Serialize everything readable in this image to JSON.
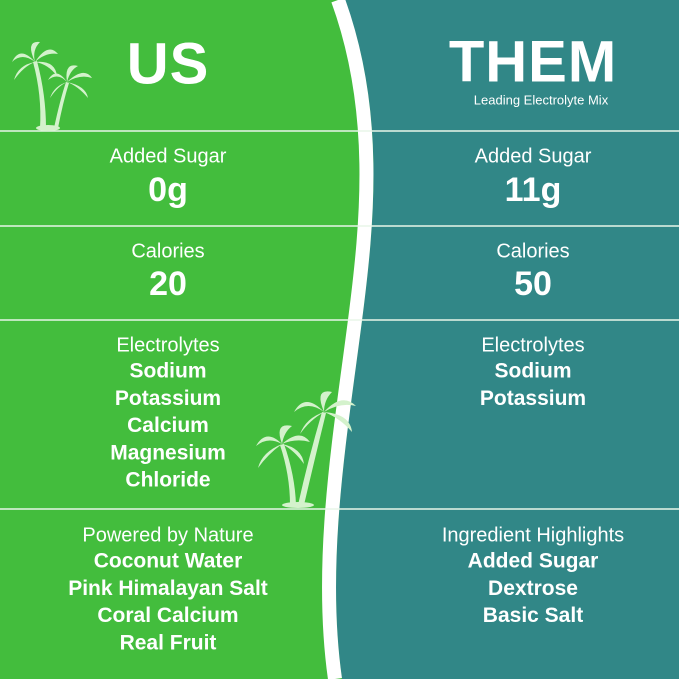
{
  "columns": [
    {
      "title": "US",
      "rows": [
        {
          "label": "Added Sugar",
          "value": "0g"
        },
        {
          "label": "Calories",
          "value": "20"
        },
        {
          "label": "Electrolytes",
          "items": [
            "Sodium",
            "Potassium",
            "Calcium",
            "Magnesium",
            "Chloride"
          ]
        },
        {
          "label": "Powered by Nature",
          "items": [
            "Coconut Water",
            "Pink Himalayan Salt",
            "Coral Calcium",
            "Real Fruit"
          ]
        }
      ]
    },
    {
      "title": "THEM",
      "subtitle": "Leading Electrolyte Mix",
      "rows": [
        {
          "label": "Added Sugar",
          "value": "11g"
        },
        {
          "label": "Calories",
          "value": "50"
        },
        {
          "label": "Electrolytes",
          "items": [
            "Sodium",
            "Potassium"
          ]
        },
        {
          "label": "Ingredient Highlights",
          "items": [
            "Added Sugar",
            "Dextrose",
            "Basic Salt"
          ]
        }
      ]
    }
  ]
}
